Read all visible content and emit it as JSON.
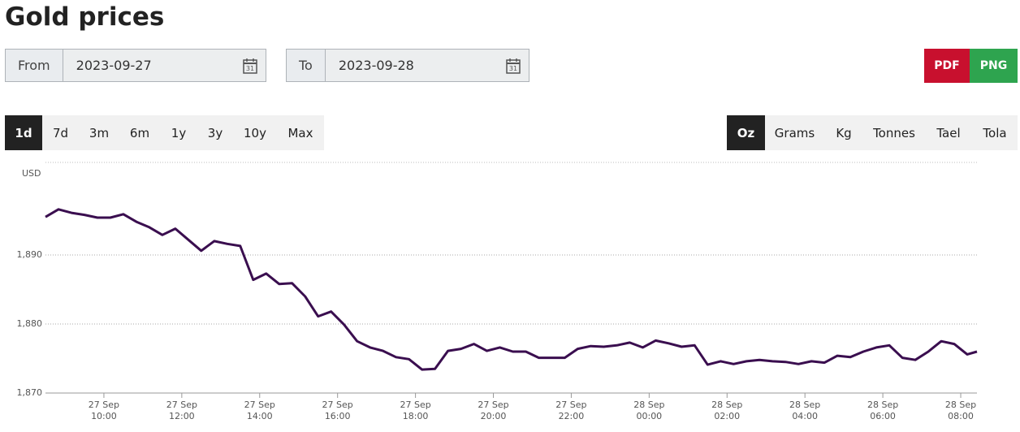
{
  "header": {
    "title": "Gold prices"
  },
  "controls": {
    "from_label": "From",
    "from_value": "2023-09-27",
    "to_label": "To",
    "to_value": "2023-09-28",
    "export": [
      "PDF",
      "PNG"
    ],
    "ranges": {
      "items": [
        "1d",
        "7d",
        "3m",
        "6m",
        "1y",
        "3y",
        "10y",
        "Max"
      ],
      "selected": 0
    },
    "units": {
      "items": [
        "Oz",
        "Grams",
        "Kg",
        "Tonnes",
        "Tael",
        "Tola"
      ],
      "selected": 0
    }
  },
  "chart_data": {
    "type": "line",
    "y_label": "USD",
    "x": [
      "27 Sep 08:30",
      "27 Sep 08:50",
      "27 Sep 09:10",
      "27 Sep 09:30",
      "27 Sep 09:50",
      "27 Sep 10:10",
      "27 Sep 10:30",
      "27 Sep 10:50",
      "27 Sep 11:10",
      "27 Sep 11:30",
      "27 Sep 11:50",
      "27 Sep 12:10",
      "27 Sep 12:30",
      "27 Sep 12:50",
      "27 Sep 13:10",
      "27 Sep 13:30",
      "27 Sep 13:50",
      "27 Sep 14:10",
      "27 Sep 14:30",
      "27 Sep 14:50",
      "27 Sep 15:10",
      "27 Sep 15:30",
      "27 Sep 15:50",
      "27 Sep 16:10",
      "27 Sep 16:30",
      "27 Sep 16:50",
      "27 Sep 17:10",
      "27 Sep 17:30",
      "27 Sep 17:50",
      "27 Sep 18:10",
      "27 Sep 18:30",
      "27 Sep 18:50",
      "27 Sep 19:10",
      "27 Sep 19:30",
      "27 Sep 19:50",
      "27 Sep 20:10",
      "27 Sep 20:30",
      "27 Sep 20:50",
      "27 Sep 21:10",
      "27 Sep 21:30",
      "27 Sep 21:50",
      "27 Sep 22:10",
      "27 Sep 22:30",
      "27 Sep 22:50",
      "27 Sep 23:10",
      "27 Sep 23:30",
      "27 Sep 23:50",
      "28 Sep 00:10",
      "28 Sep 00:30",
      "28 Sep 00:50",
      "28 Sep 01:10",
      "28 Sep 01:30",
      "28 Sep 01:50",
      "28 Sep 02:10",
      "28 Sep 02:30",
      "28 Sep 02:50",
      "28 Sep 03:10",
      "28 Sep 03:30",
      "28 Sep 03:50",
      "28 Sep 04:10",
      "28 Sep 04:30",
      "28 Sep 04:50",
      "28 Sep 05:10",
      "28 Sep 05:30",
      "28 Sep 05:50",
      "28 Sep 06:10",
      "28 Sep 06:30",
      "28 Sep 06:50",
      "28 Sep 07:10",
      "28 Sep 07:30",
      "28 Sep 07:50",
      "28 Sep 08:10",
      "28 Sep 08:25"
    ],
    "series": [
      {
        "name": "Gold",
        "color": "#3a0e4f",
        "values": [
          1895.5,
          1896.6,
          1896.1,
          1895.8,
          1895.4,
          1895.4,
          1895.9,
          1894.8,
          1894.0,
          1892.9,
          1893.8,
          1892.2,
          1890.6,
          1892.0,
          1891.6,
          1891.3,
          1886.4,
          1887.3,
          1885.8,
          1885.9,
          1884.0,
          1881.1,
          1881.8,
          1879.9,
          1877.5,
          1876.6,
          1876.1,
          1875.2,
          1874.9,
          1873.4,
          1873.5,
          1876.1,
          1876.4,
          1877.1,
          1876.1,
          1876.6,
          1876.0,
          1876.0,
          1875.1,
          1875.1,
          1875.1,
          1876.4,
          1876.8,
          1876.7,
          1876.9,
          1877.3,
          1876.6,
          1877.6,
          1877.2,
          1876.7,
          1876.9,
          1874.1,
          1874.6,
          1874.2,
          1874.6,
          1874.8,
          1874.6,
          1874.5,
          1874.2,
          1874.6,
          1874.4,
          1875.4,
          1875.2,
          1876.0,
          1876.6,
          1876.9,
          1875.1,
          1874.8,
          1876.0,
          1877.5,
          1877.1,
          1875.6,
          1876.0
        ]
      }
    ],
    "xlim": [
      "27 Sep 08:30",
      "28 Sep 08:25"
    ],
    "xticks": [
      "27 Sep 10:00",
      "27 Sep 12:00",
      "27 Sep 14:00",
      "27 Sep 16:00",
      "27 Sep 18:00",
      "27 Sep 20:00",
      "27 Sep 22:00",
      "28 Sep 00:00",
      "28 Sep 02:00",
      "28 Sep 04:00",
      "28 Sep 06:00",
      "28 Sep 08:00"
    ],
    "ylim": [
      1870,
      1903.4
    ],
    "yticks": [
      {
        "value": 1870,
        "label": "1,870"
      },
      {
        "value": 1880,
        "label": "1,880"
      },
      {
        "value": 1890,
        "label": "1,890"
      }
    ],
    "grid": true
  }
}
